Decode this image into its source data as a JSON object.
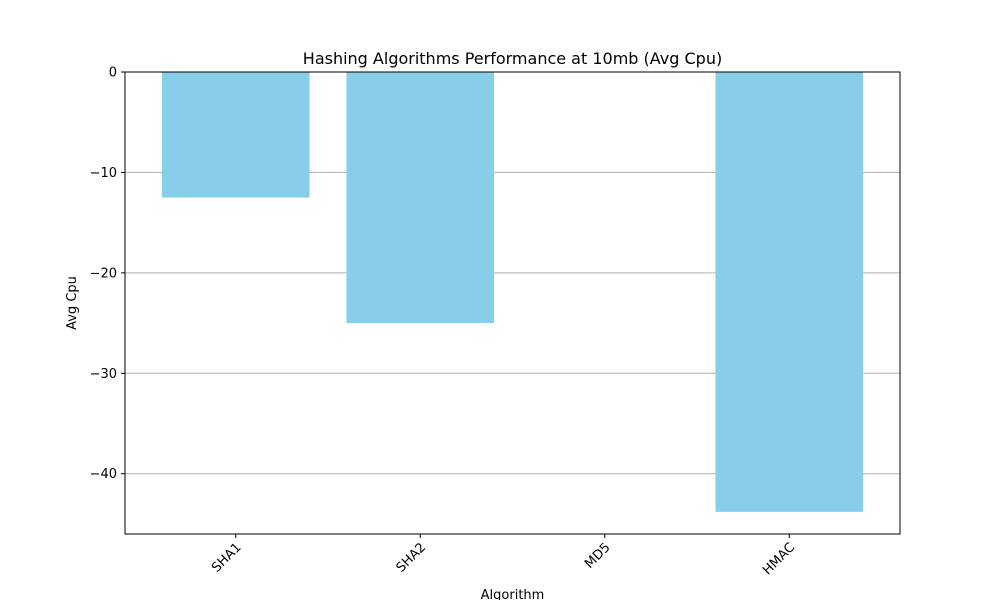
{
  "chart_data": {
    "type": "bar",
    "title": "Hashing Algorithms Performance at 10mb (Avg Cpu)",
    "xlabel": "Algorithm",
    "ylabel": "Avg Cpu",
    "categories": [
      "SHA1",
      "SHA2",
      "MD5",
      "HMAC"
    ],
    "values": [
      -12.5,
      -25.0,
      0.0,
      -43.8
    ],
    "ylim": [
      -46.0,
      0.0
    ],
    "yticks": [
      0,
      -10,
      -20,
      -30,
      -40
    ],
    "ytick_labels": [
      "0",
      "−10",
      "−20",
      "−30",
      "−40"
    ],
    "grid": "y",
    "bar_color": "#87ceeb",
    "x_tick_rotation_deg": 45
  }
}
